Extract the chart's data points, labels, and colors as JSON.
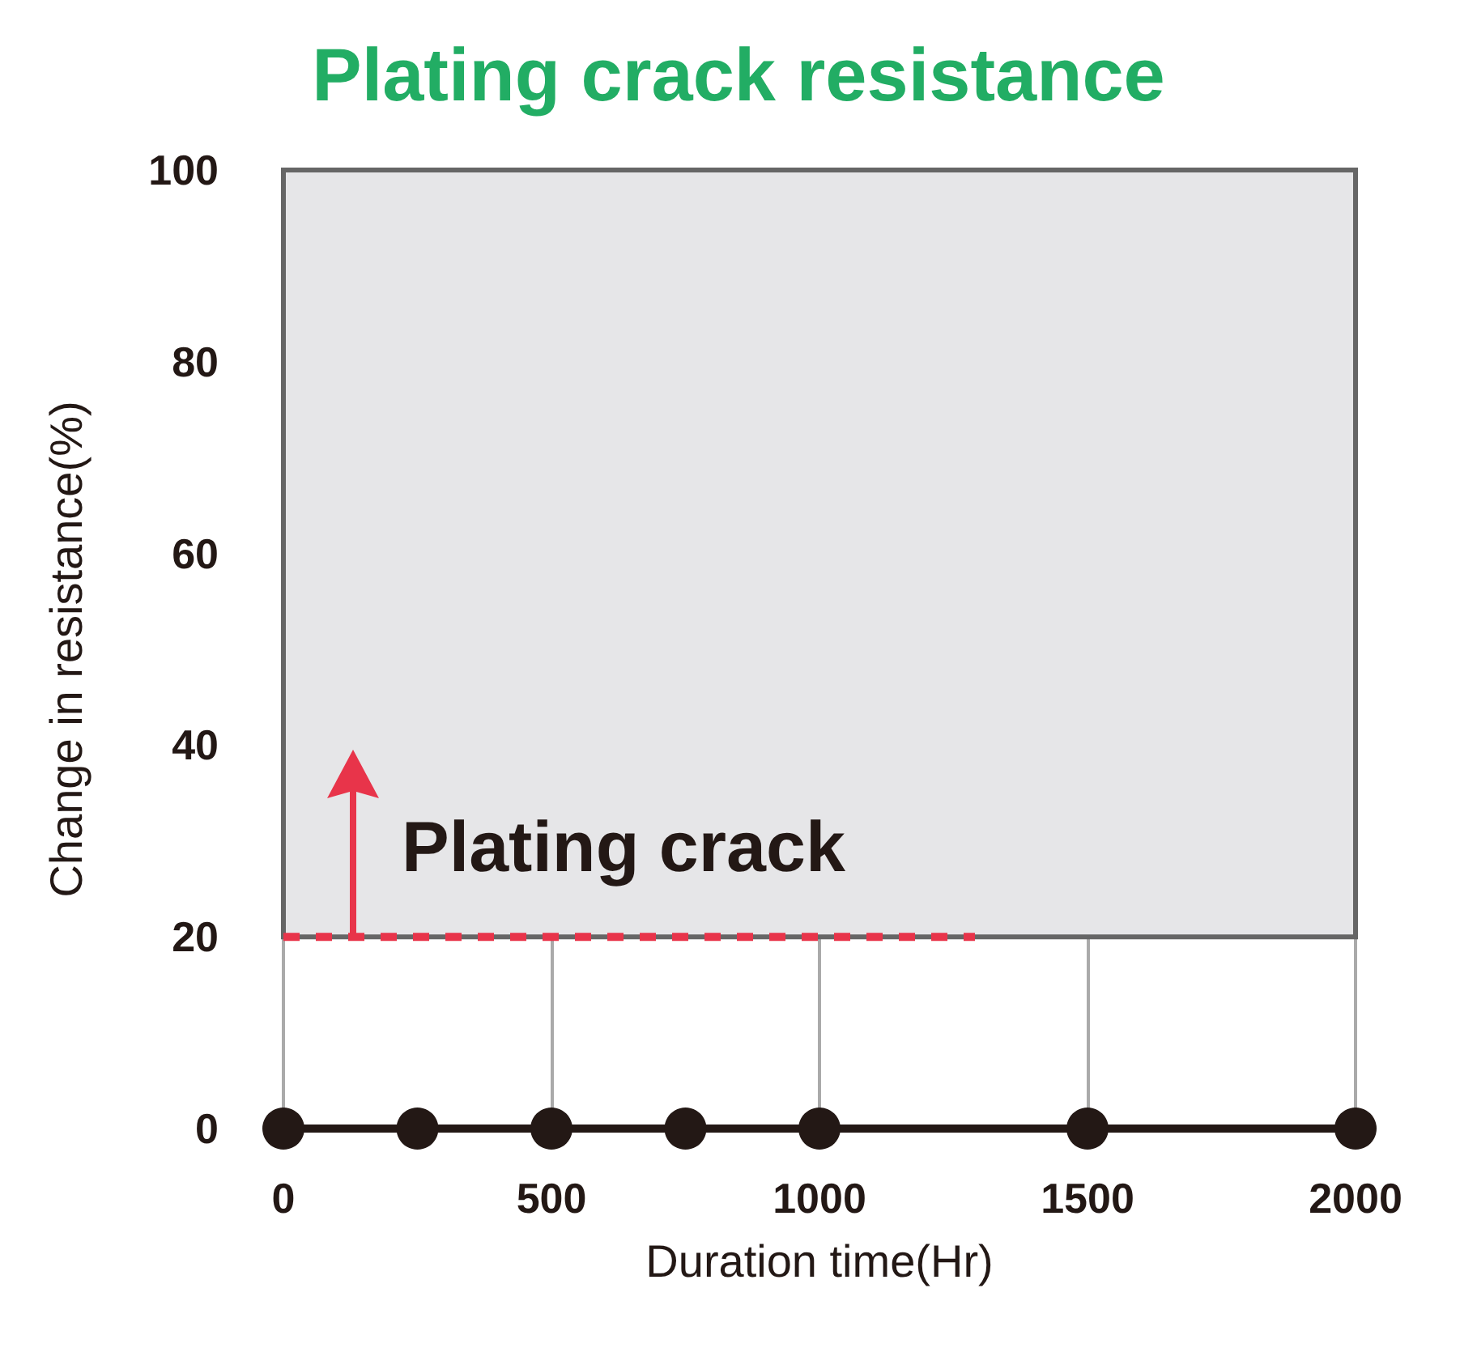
{
  "chart_data": {
    "type": "line",
    "title": "Plating crack resistance",
    "xlabel": "Duration time(Hr)",
    "ylabel": "Change in resistance(%)",
    "x": [
      0,
      250,
      500,
      750,
      1000,
      1500,
      2000
    ],
    "series": [
      {
        "color": "#231815",
        "values": [
          0,
          0,
          0,
          0,
          0,
          0,
          0
        ],
        "marker": "circle",
        "line_style": "solid"
      },
      {
        "type": "line",
        "color": "#e8344a",
        "x": [
          0,
          1290
        ],
        "values": [
          20,
          20
        ],
        "marker": "none",
        "line_style": "dashed"
      }
    ],
    "bands": [
      {
        "axis": "y",
        "from": 20,
        "to": 100,
        "color": "#e6e6e8"
      }
    ],
    "annotations": [
      {
        "text": "Plating crack",
        "x": 130,
        "y": 20
      }
    ],
    "xlim": [
      0,
      2000
    ],
    "xticks": [
      0,
      500,
      1000,
      1500,
      2000
    ],
    "ylim": [
      0,
      100
    ],
    "yticks": [
      0,
      20,
      40,
      60,
      80,
      100
    ],
    "grid": true
  }
}
